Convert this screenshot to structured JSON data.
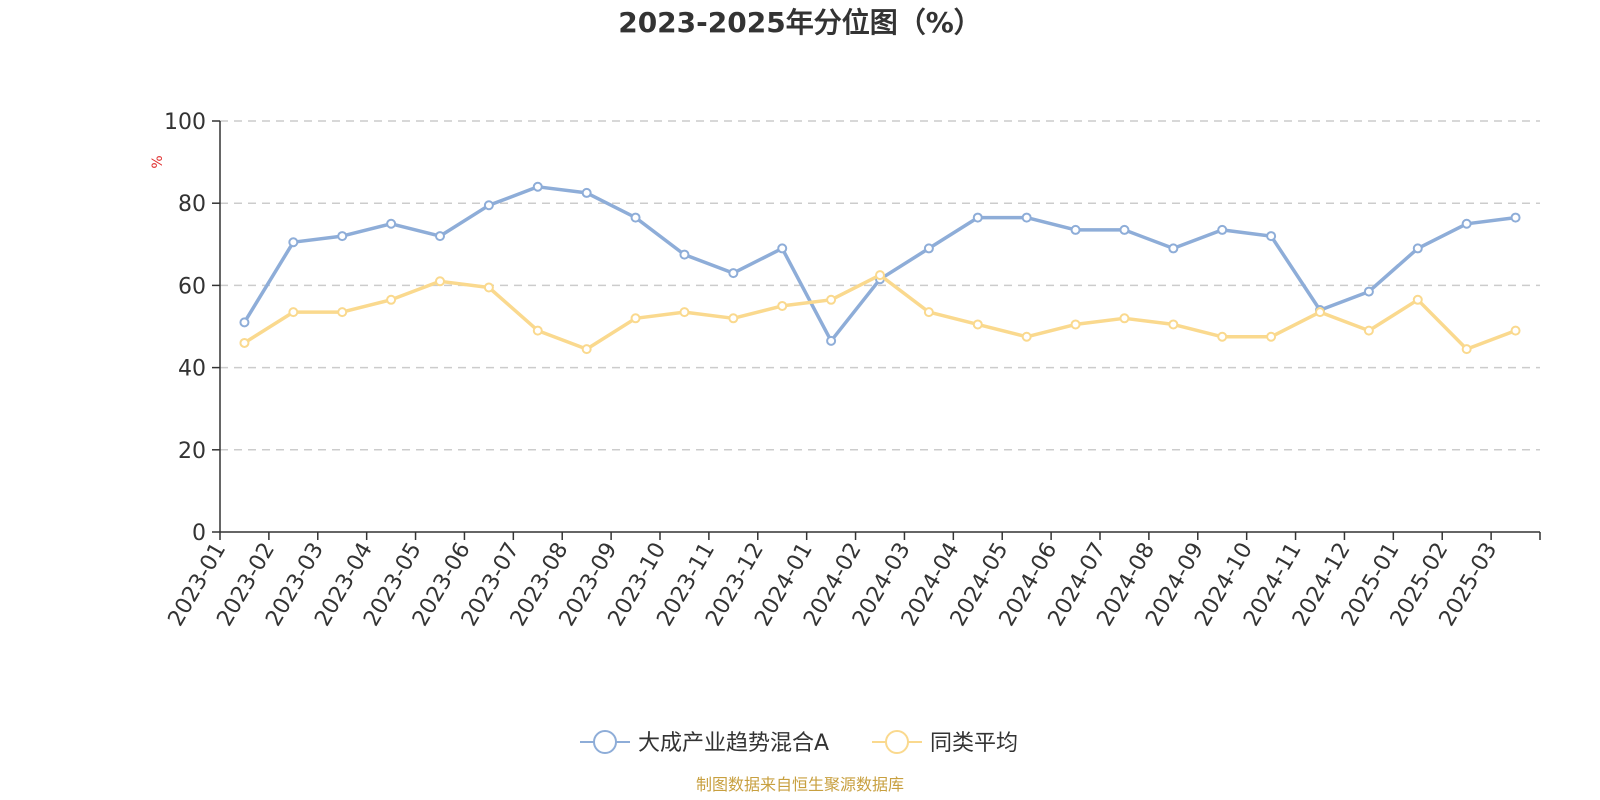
{
  "chart_data": {
    "type": "line",
    "title": "2023-2025年分位图（%）",
    "ylabel": "%",
    "xlabel": "",
    "ylim": [
      0,
      100
    ],
    "y_ticks": [
      0,
      20,
      40,
      60,
      80,
      100
    ],
    "grid": "horizontal-dashed",
    "legend_position": "bottom",
    "categories": [
      "2023-01",
      "2023-02",
      "2023-03",
      "2023-04",
      "2023-05",
      "2023-06",
      "2023-07",
      "2023-08",
      "2023-09",
      "2023-10",
      "2023-11",
      "2023-12",
      "2024-01",
      "2024-02",
      "2024-03",
      "2024-04",
      "2024-05",
      "2024-06",
      "2024-07",
      "2024-08",
      "2024-09",
      "2024-10",
      "2024-11",
      "2024-12",
      "2025-01",
      "2025-02",
      "2025-03"
    ],
    "series": [
      {
        "name": "大成产业趋势混合A",
        "color": "#8eadd8",
        "values": [
          51,
          70.5,
          72,
          75,
          72,
          79.5,
          84,
          82.5,
          76.5,
          67.5,
          63,
          69,
          46.5,
          61.5,
          69,
          76.5,
          76.5,
          73.5,
          73.5,
          69,
          73.5,
          72,
          54,
          58.5,
          69,
          75,
          76.5
        ]
      },
      {
        "name": "同类平均",
        "color": "#fad98e",
        "values": [
          46,
          53.5,
          53.5,
          56.5,
          61,
          59.5,
          49,
          44.5,
          52,
          53.5,
          52,
          55,
          56.5,
          62.5,
          53.5,
          50.5,
          47.5,
          50.5,
          52,
          50.5,
          47.5,
          47.5,
          53.5,
          49,
          56.5,
          44.5,
          49
        ]
      }
    ],
    "source": "制图数据来自恒生聚源数据库",
    "source_color": "#c8a040",
    "ylabel_color": "#e03030"
  }
}
